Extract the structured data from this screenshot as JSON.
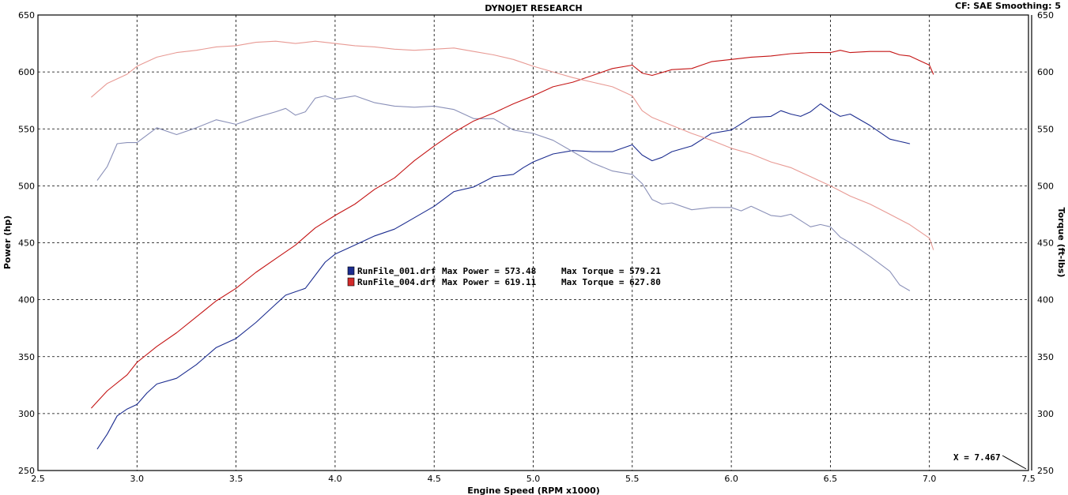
{
  "header": {
    "title": "DYNOJET RESEARCH",
    "settings": "CF: SAE  Smoothing: 5"
  },
  "legend": [
    {
      "file": "RunFile_001.drf",
      "power_label": "Max Power = 573.48",
      "torque_label": "Max Torque = 579.21",
      "color": "#1b2c8f"
    },
    {
      "file": "RunFile_004.drf",
      "power_label": "Max Power = 619.11",
      "torque_label": "Max Torque = 627.80",
      "color": "#d22a2a"
    }
  ],
  "cursor": {
    "label": "X = 7.467"
  },
  "chart_data": {
    "type": "line",
    "title": "DYNOJET RESEARCH",
    "xlabel": "Engine Speed (RPM x1000)",
    "ylabel": "Power (hp)",
    "y2label": "Torque (ft-lbs)",
    "xlim": [
      2.5,
      7.5
    ],
    "ylim": [
      250,
      650
    ],
    "y2lim": [
      250,
      650
    ],
    "xticks": [
      "2.5",
      "3.0",
      "3.5",
      "4.0",
      "4.5",
      "5.0",
      "5.5",
      "6.0",
      "6.5",
      "7.0",
      "7.5"
    ],
    "yticks": [
      "250",
      "300",
      "350",
      "400",
      "450",
      "500",
      "550",
      "600",
      "650"
    ],
    "grid": true,
    "series": [
      {
        "name": "RunFile_001.drf Power",
        "axis": "left",
        "color": "#1b2c8f",
        "points": [
          [
            2.8,
            269
          ],
          [
            2.85,
            282
          ],
          [
            2.9,
            298
          ],
          [
            2.95,
            304
          ],
          [
            3.0,
            308
          ],
          [
            3.05,
            318
          ],
          [
            3.1,
            326
          ],
          [
            3.2,
            331
          ],
          [
            3.3,
            343
          ],
          [
            3.4,
            358
          ],
          [
            3.5,
            366
          ],
          [
            3.6,
            380
          ],
          [
            3.7,
            396
          ],
          [
            3.75,
            404
          ],
          [
            3.85,
            410
          ],
          [
            3.95,
            433
          ],
          [
            4.0,
            440
          ],
          [
            4.1,
            448
          ],
          [
            4.2,
            456
          ],
          [
            4.3,
            462
          ],
          [
            4.4,
            472
          ],
          [
            4.5,
            482
          ],
          [
            4.6,
            495
          ],
          [
            4.7,
            499
          ],
          [
            4.8,
            508
          ],
          [
            4.85,
            509
          ],
          [
            4.9,
            510
          ],
          [
            4.95,
            516
          ],
          [
            5.0,
            521
          ],
          [
            5.1,
            528
          ],
          [
            5.2,
            531
          ],
          [
            5.3,
            530
          ],
          [
            5.4,
            530
          ],
          [
            5.5,
            536
          ],
          [
            5.55,
            527
          ],
          [
            5.6,
            522
          ],
          [
            5.65,
            525
          ],
          [
            5.7,
            530
          ],
          [
            5.8,
            535
          ],
          [
            5.9,
            546
          ],
          [
            6.0,
            549
          ],
          [
            6.1,
            560
          ],
          [
            6.2,
            561
          ],
          [
            6.25,
            566
          ],
          [
            6.3,
            563
          ],
          [
            6.35,
            561
          ],
          [
            6.4,
            565
          ],
          [
            6.45,
            572
          ],
          [
            6.5,
            566
          ],
          [
            6.55,
            561
          ],
          [
            6.6,
            563
          ],
          [
            6.7,
            553
          ],
          [
            6.8,
            541
          ],
          [
            6.85,
            539
          ],
          [
            6.9,
            537
          ]
        ]
      },
      {
        "name": "RunFile_001.drf Torque",
        "axis": "right",
        "color": "#8a90b8",
        "points": [
          [
            2.8,
            505
          ],
          [
            2.85,
            517
          ],
          [
            2.9,
            537
          ],
          [
            2.95,
            538
          ],
          [
            3.0,
            538
          ],
          [
            3.1,
            551
          ],
          [
            3.2,
            545
          ],
          [
            3.3,
            551
          ],
          [
            3.4,
            558
          ],
          [
            3.5,
            554
          ],
          [
            3.6,
            560
          ],
          [
            3.7,
            565
          ],
          [
            3.75,
            568
          ],
          [
            3.8,
            562
          ],
          [
            3.85,
            565
          ],
          [
            3.9,
            577
          ],
          [
            3.95,
            579
          ],
          [
            4.0,
            576
          ],
          [
            4.1,
            579
          ],
          [
            4.2,
            573
          ],
          [
            4.3,
            570
          ],
          [
            4.4,
            569
          ],
          [
            4.5,
            570
          ],
          [
            4.6,
            567
          ],
          [
            4.7,
            559
          ],
          [
            4.8,
            559
          ],
          [
            4.9,
            549
          ],
          [
            5.0,
            546
          ],
          [
            5.1,
            540
          ],
          [
            5.2,
            530
          ],
          [
            5.3,
            520
          ],
          [
            5.4,
            513
          ],
          [
            5.5,
            510
          ],
          [
            5.55,
            502
          ],
          [
            5.6,
            488
          ],
          [
            5.65,
            484
          ],
          [
            5.7,
            485
          ],
          [
            5.8,
            479
          ],
          [
            5.9,
            481
          ],
          [
            6.0,
            481
          ],
          [
            6.05,
            478
          ],
          [
            6.1,
            482
          ],
          [
            6.2,
            474
          ],
          [
            6.25,
            473
          ],
          [
            6.3,
            475
          ],
          [
            6.4,
            464
          ],
          [
            6.45,
            466
          ],
          [
            6.5,
            464
          ],
          [
            6.55,
            455
          ],
          [
            6.6,
            450
          ],
          [
            6.7,
            438
          ],
          [
            6.8,
            425
          ],
          [
            6.85,
            413
          ],
          [
            6.9,
            408
          ]
        ]
      },
      {
        "name": "RunFile_004.drf Power",
        "axis": "left",
        "color": "#c41414",
        "points": [
          [
            2.77,
            305
          ],
          [
            2.85,
            320
          ],
          [
            2.95,
            334
          ],
          [
            3.0,
            345
          ],
          [
            3.1,
            359
          ],
          [
            3.2,
            371
          ],
          [
            3.3,
            385
          ],
          [
            3.4,
            399
          ],
          [
            3.5,
            410
          ],
          [
            3.6,
            424
          ],
          [
            3.7,
            436
          ],
          [
            3.8,
            448
          ],
          [
            3.9,
            463
          ],
          [
            4.0,
            474
          ],
          [
            4.1,
            484
          ],
          [
            4.2,
            497
          ],
          [
            4.3,
            507
          ],
          [
            4.4,
            522
          ],
          [
            4.5,
            535
          ],
          [
            4.6,
            547
          ],
          [
            4.7,
            557
          ],
          [
            4.8,
            564
          ],
          [
            4.9,
            572
          ],
          [
            5.0,
            579
          ],
          [
            5.1,
            587
          ],
          [
            5.2,
            591
          ],
          [
            5.3,
            597
          ],
          [
            5.4,
            603
          ],
          [
            5.5,
            606
          ],
          [
            5.55,
            599
          ],
          [
            5.6,
            597
          ],
          [
            5.7,
            602
          ],
          [
            5.8,
            603
          ],
          [
            5.9,
            609
          ],
          [
            6.0,
            611
          ],
          [
            6.1,
            613
          ],
          [
            6.2,
            614
          ],
          [
            6.3,
            616
          ],
          [
            6.4,
            617
          ],
          [
            6.5,
            617
          ],
          [
            6.55,
            619
          ],
          [
            6.6,
            617
          ],
          [
            6.7,
            618
          ],
          [
            6.8,
            618
          ],
          [
            6.85,
            615
          ],
          [
            6.9,
            614
          ],
          [
            6.95,
            610
          ],
          [
            7.0,
            606
          ],
          [
            7.02,
            598
          ]
        ]
      },
      {
        "name": "RunFile_004.drf Torque",
        "axis": "right",
        "color": "#e89a94",
        "points": [
          [
            2.77,
            578
          ],
          [
            2.85,
            590
          ],
          [
            2.95,
            598
          ],
          [
            3.0,
            605
          ],
          [
            3.1,
            613
          ],
          [
            3.2,
            617
          ],
          [
            3.3,
            619
          ],
          [
            3.4,
            622
          ],
          [
            3.5,
            623
          ],
          [
            3.6,
            626
          ],
          [
            3.7,
            627
          ],
          [
            3.8,
            625
          ],
          [
            3.9,
            627
          ],
          [
            4.0,
            625
          ],
          [
            4.1,
            623
          ],
          [
            4.2,
            622
          ],
          [
            4.3,
            620
          ],
          [
            4.4,
            619
          ],
          [
            4.5,
            620
          ],
          [
            4.6,
            621
          ],
          [
            4.7,
            618
          ],
          [
            4.8,
            615
          ],
          [
            4.9,
            611
          ],
          [
            5.0,
            605
          ],
          [
            5.1,
            600
          ],
          [
            5.2,
            595
          ],
          [
            5.3,
            591
          ],
          [
            5.4,
            587
          ],
          [
            5.5,
            579
          ],
          [
            5.55,
            566
          ],
          [
            5.6,
            560
          ],
          [
            5.7,
            553
          ],
          [
            5.8,
            546
          ],
          [
            5.9,
            540
          ],
          [
            6.0,
            533
          ],
          [
            6.1,
            528
          ],
          [
            6.2,
            521
          ],
          [
            6.3,
            516
          ],
          [
            6.4,
            508
          ],
          [
            6.5,
            500
          ],
          [
            6.6,
            491
          ],
          [
            6.7,
            484
          ],
          [
            6.8,
            475
          ],
          [
            6.9,
            466
          ],
          [
            7.0,
            454
          ],
          [
            7.02,
            444
          ]
        ]
      }
    ]
  }
}
